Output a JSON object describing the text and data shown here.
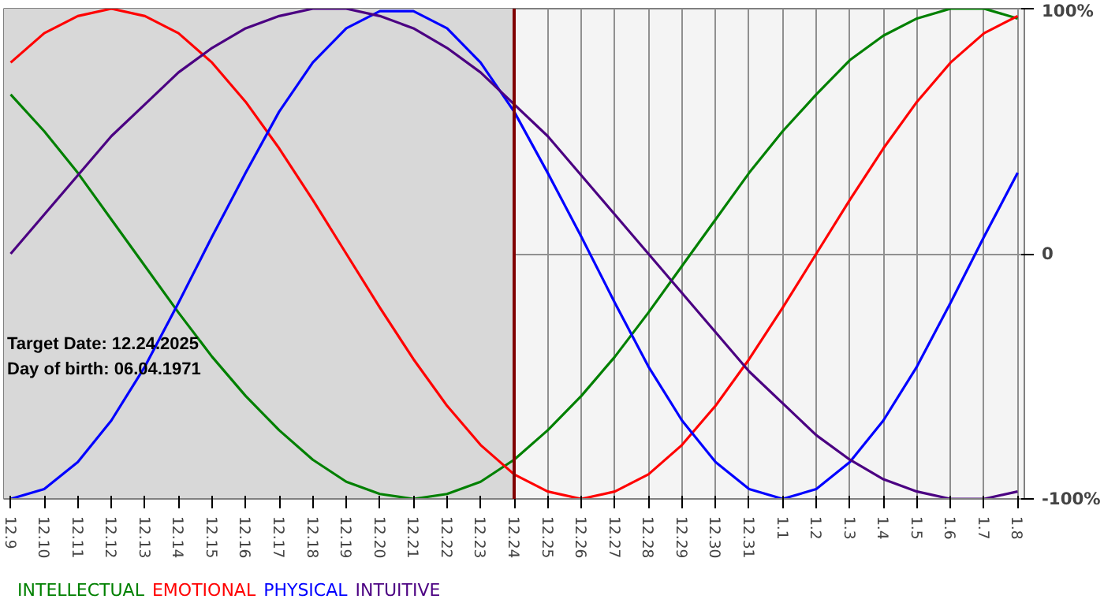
{
  "chart_data": {
    "type": "line",
    "categories": [
      "12.9",
      "12.10",
      "12.11",
      "12.12",
      "12.13",
      "12.14",
      "12.15",
      "12.16",
      "12.17",
      "12.18",
      "12.19",
      "12.20",
      "12.21",
      "12.22",
      "12.23",
      "12.24",
      "12.25",
      "12.26",
      "12.27",
      "12.28",
      "12.29",
      "12.30",
      "12.31",
      "1.1",
      "1.2",
      "1.3",
      "1.4",
      "1.5",
      "1.6",
      "1.7",
      "1.8"
    ],
    "series": [
      {
        "name": "INTELLECTUAL",
        "color": "#008000",
        "values": [
          65,
          50,
          33,
          14,
          -5,
          -24,
          -42,
          -58,
          -72,
          -84,
          -93,
          -98,
          -100,
          -98,
          -93,
          -84,
          -72,
          -58,
          -42,
          -24,
          -5,
          14,
          33,
          50,
          65,
          79,
          89,
          96,
          100,
          100,
          96
        ]
      },
      {
        "name": "EMOTIONAL",
        "color": "#ff0000",
        "values": [
          78,
          90,
          97,
          100,
          97,
          90,
          78,
          62,
          43,
          22,
          0,
          -22,
          -43,
          -62,
          -78,
          -90,
          -97,
          -100,
          -97,
          -90,
          -78,
          -62,
          -43,
          -22,
          0,
          22,
          43,
          62,
          78,
          90,
          97
        ]
      },
      {
        "name": "PHYSICAL",
        "color": "#0000ff",
        "values": [
          -100,
          -96,
          -85,
          -68,
          -46,
          -20,
          7,
          33,
          58,
          78,
          92,
          99,
          99,
          92,
          78,
          58,
          33,
          7,
          -20,
          -46,
          -68,
          -85,
          -96,
          -100,
          -96,
          -85,
          -68,
          -46,
          -20,
          7,
          33
        ]
      },
      {
        "name": "INTUITIVE",
        "color": "#4b0082",
        "values": [
          0,
          16,
          32,
          48,
          61,
          74,
          84,
          92,
          97,
          100,
          100,
          97,
          92,
          84,
          74,
          61,
          48,
          32,
          16,
          0,
          -16,
          -32,
          -48,
          -61,
          -74,
          -84,
          -92,
          -97,
          -100,
          -100,
          -97
        ]
      }
    ],
    "ylim": [
      -100,
      100
    ],
    "yticks": [
      {
        "value": -100,
        "label": "-100%"
      },
      0,
      {
        "value": 100,
        "label": "100%"
      }
    ],
    "grid": true,
    "marker": "none",
    "line_style": "solid",
    "ref_lines": [
      {
        "axis": "x",
        "value": "12.24",
        "color": "#800000"
      }
    ],
    "bands": [
      {
        "axis": "x",
        "from": "12.9",
        "to": "12.24",
        "color": "#d8d8d8"
      }
    ],
    "annotations": [
      "Target Date: 12.24.2025",
      "Day of birth: 06.04.1971"
    ]
  }
}
